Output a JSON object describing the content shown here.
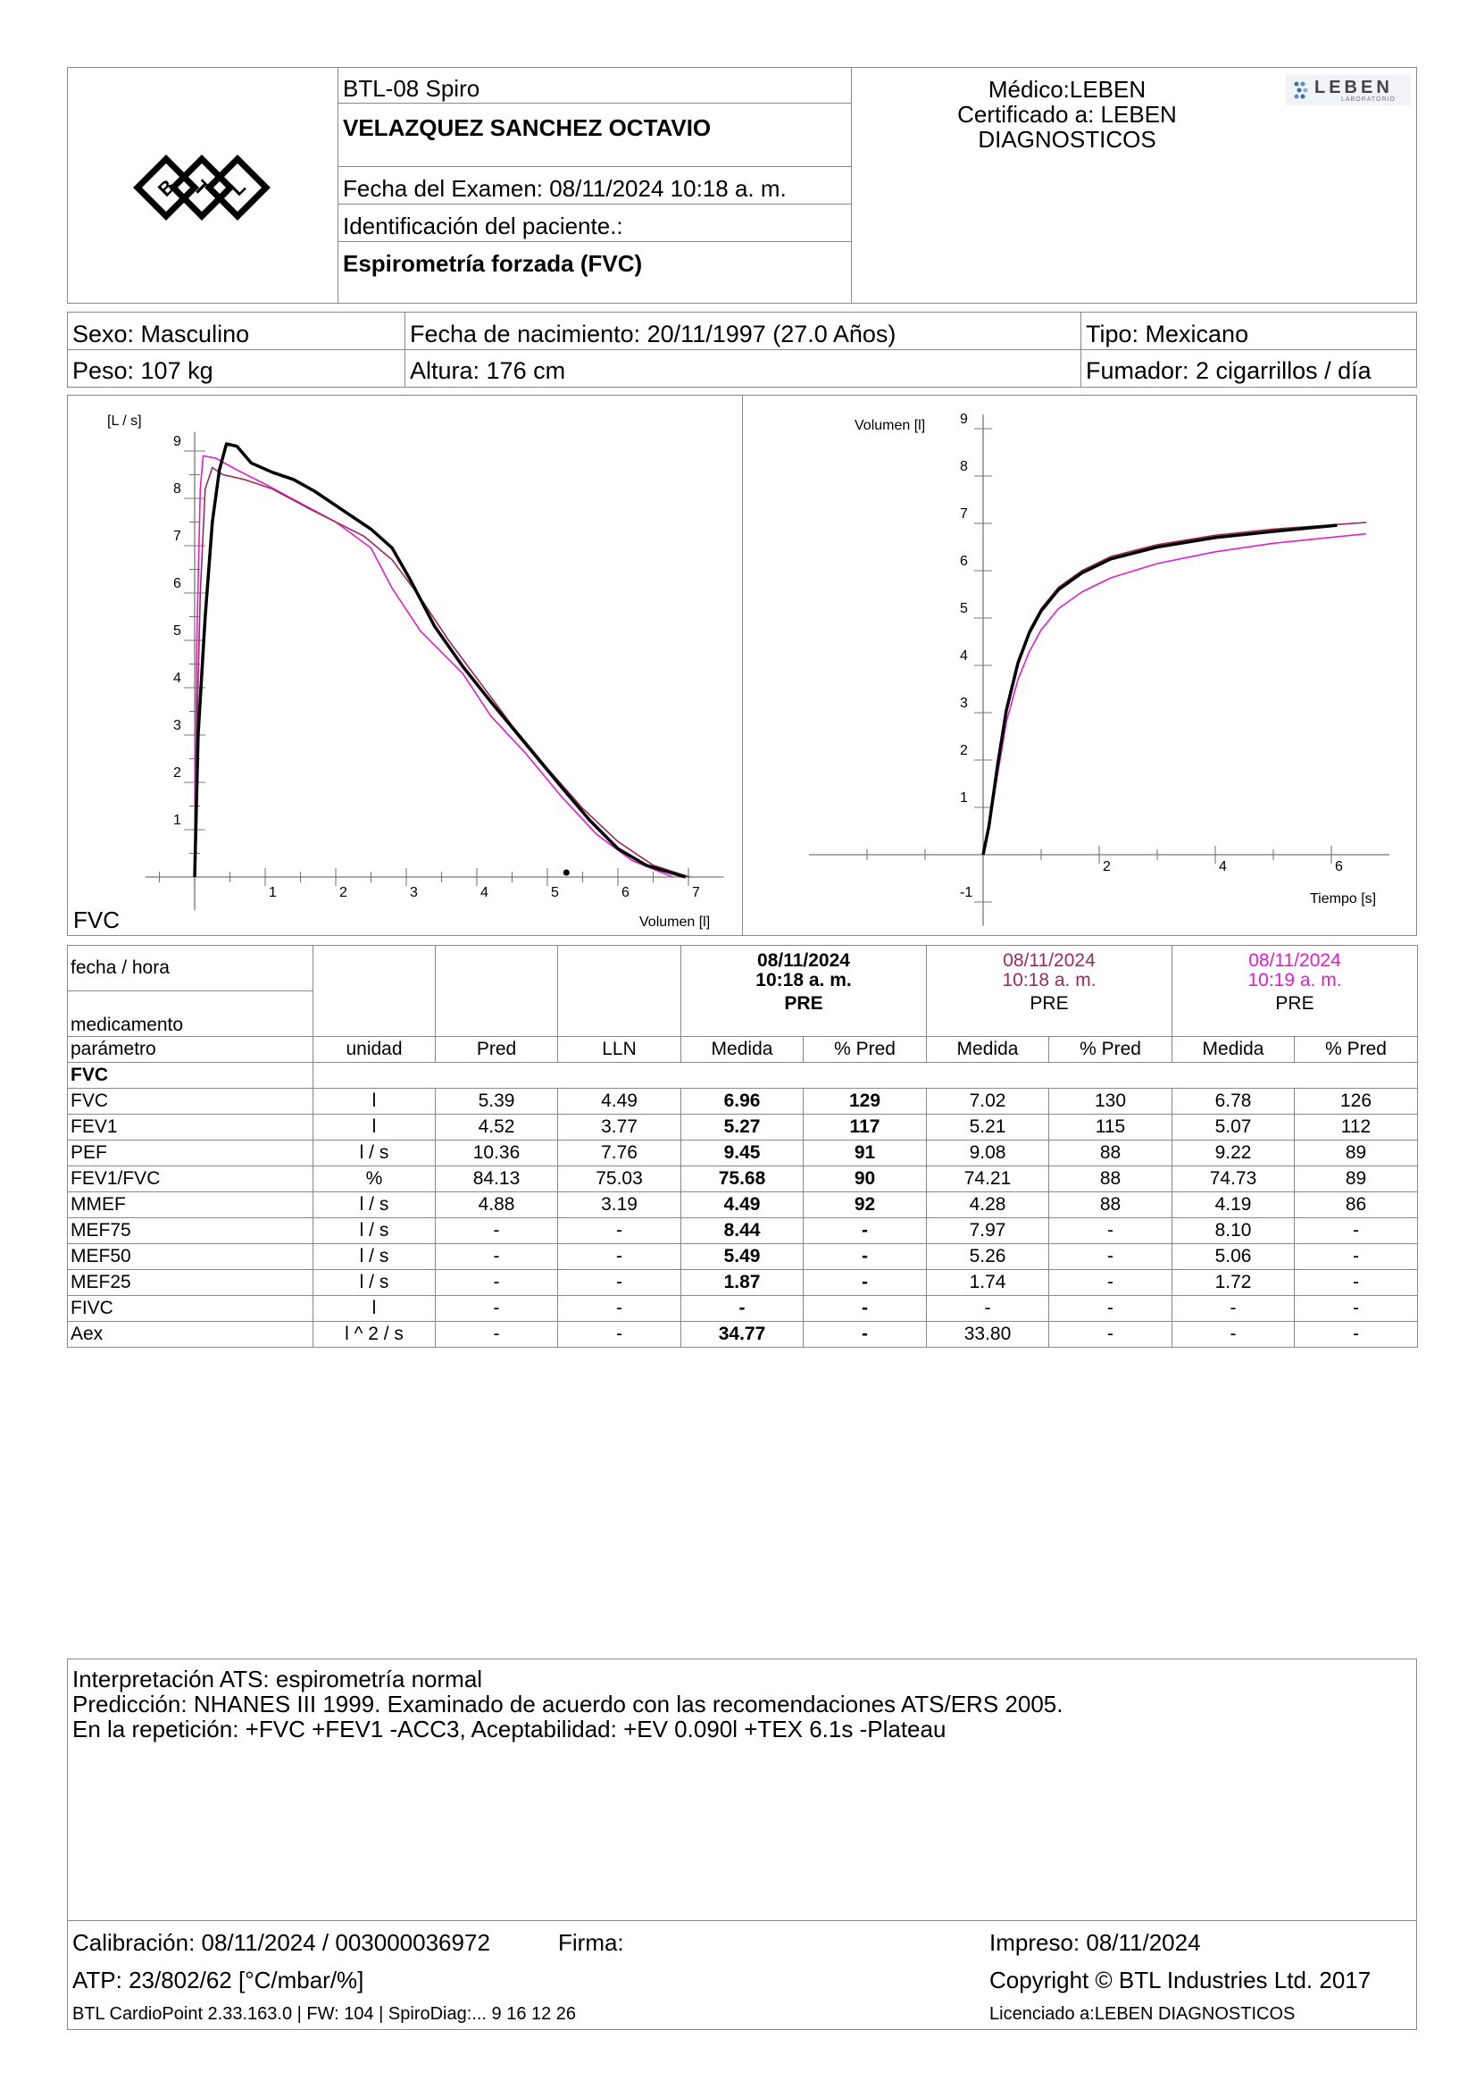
{
  "header": {
    "device": "BTL-08 Spiro",
    "patient_name": "VELAZQUEZ SANCHEZ OCTAVIO",
    "exam_date": "Fecha del Examen:  08/11/2024 10:18 a. m.",
    "patient_id": "Identificación del paciente.:",
    "test_type": "Espirometría forzada (FVC)",
    "doctor": "Médico:LEBEN",
    "certified_line1": "Certificado a: LEBEN",
    "certified_line2": "DIAGNOSTICOS",
    "brand_logo_text": "LEBEN",
    "brand_logo_sub": "LABORATORIO"
  },
  "patient": {
    "sex": "Sexo: Masculino",
    "birth": "Fecha de nacimiento: 20/11/1997 (27.0 Años)",
    "type": "Tipo: Mexicano",
    "weight": "Peso: 107 kg",
    "height": "Altura: 176 cm",
    "smoker": "Fumador: 2 cigarrillos / día"
  },
  "colors": {
    "best_trial": "#000000",
    "trial_2": "#9b2a5e",
    "trial_3": "#e21ccf",
    "border": "#888888"
  },
  "chart_data": [
    {
      "type": "line",
      "ylabel": "[L / s]",
      "xlabel": "Volumen [l]",
      "corner_label": "FVC",
      "xlim": [
        -1,
        7.5
      ],
      "ylim": [
        -0.3,
        9.5
      ],
      "xticks": [
        1,
        2,
        3,
        4,
        5,
        6,
        7
      ],
      "yticks": [
        1,
        2,
        3,
        4,
        5,
        6,
        7,
        8,
        9
      ],
      "marker_point": {
        "x": 5.27,
        "y": 0
      },
      "series": [
        {
          "key": "best",
          "values": [
            [
              0,
              0
            ],
            [
              0.05,
              3
            ],
            [
              0.15,
              5.5
            ],
            [
              0.25,
              7.5
            ],
            [
              0.35,
              8.6
            ],
            [
              0.45,
              9.15
            ],
            [
              0.6,
              9.1
            ],
            [
              0.8,
              8.75
            ],
            [
              1.1,
              8.55
            ],
            [
              1.4,
              8.4
            ],
            [
              1.7,
              8.15
            ],
            [
              2.1,
              7.75
            ],
            [
              2.5,
              7.35
            ],
            [
              2.8,
              6.95
            ],
            [
              3.05,
              6.3
            ],
            [
              3.4,
              5.3
            ],
            [
              3.8,
              4.45
            ],
            [
              4.2,
              3.7
            ],
            [
              4.7,
              2.8
            ],
            [
              5.2,
              1.9
            ],
            [
              5.6,
              1.2
            ],
            [
              6.0,
              0.6
            ],
            [
              6.4,
              0.25
            ],
            [
              6.96,
              0
            ]
          ]
        },
        {
          "key": "trial2",
          "values": [
            [
              0,
              0
            ],
            [
              0.03,
              3
            ],
            [
              0.08,
              6
            ],
            [
              0.15,
              8.2
            ],
            [
              0.25,
              8.65
            ],
            [
              0.4,
              8.5
            ],
            [
              0.7,
              8.4
            ],
            [
              1.1,
              8.2
            ],
            [
              1.6,
              7.8
            ],
            [
              2.0,
              7.5
            ],
            [
              2.4,
              7.2
            ],
            [
              2.8,
              6.7
            ],
            [
              3.2,
              5.9
            ],
            [
              3.6,
              5.0
            ],
            [
              4.0,
              4.2
            ],
            [
              4.5,
              3.2
            ],
            [
              5.0,
              2.3
            ],
            [
              5.5,
              1.45
            ],
            [
              6.0,
              0.75
            ],
            [
              6.5,
              0.25
            ],
            [
              7.02,
              0
            ]
          ]
        },
        {
          "key": "trial3",
          "values": [
            [
              0,
              0
            ],
            [
              0.03,
              5
            ],
            [
              0.08,
              8.2
            ],
            [
              0.12,
              8.9
            ],
            [
              0.3,
              8.85
            ],
            [
              0.6,
              8.6
            ],
            [
              1.0,
              8.3
            ],
            [
              1.5,
              7.9
            ],
            [
              2.0,
              7.5
            ],
            [
              2.5,
              6.95
            ],
            [
              2.8,
              6.1
            ],
            [
              3.2,
              5.2
            ],
            [
              3.8,
              4.3
            ],
            [
              4.2,
              3.4
            ],
            [
              4.7,
              2.6
            ],
            [
              5.2,
              1.7
            ],
            [
              5.7,
              0.9
            ],
            [
              6.2,
              0.35
            ],
            [
              6.78,
              0
            ]
          ]
        }
      ]
    },
    {
      "type": "line",
      "ylabel": "Volumen [l]",
      "xlabel": "Tiempo [s]",
      "xlim": [
        -3,
        7
      ],
      "ylim": [
        -1.5,
        9.5
      ],
      "xticks": [
        2,
        4,
        6
      ],
      "yticks": [
        -1,
        1,
        2,
        3,
        4,
        5,
        6,
        7,
        8,
        9
      ],
      "series": [
        {
          "key": "best",
          "values": [
            [
              0,
              0
            ],
            [
              0.1,
              0.6
            ],
            [
              0.25,
              1.9
            ],
            [
              0.4,
              3.05
            ],
            [
              0.6,
              4.05
            ],
            [
              0.8,
              4.7
            ],
            [
              1.0,
              5.15
            ],
            [
              1.3,
              5.6
            ],
            [
              1.7,
              5.95
            ],
            [
              2.2,
              6.25
            ],
            [
              3.0,
              6.5
            ],
            [
              4.0,
              6.7
            ],
            [
              5.0,
              6.83
            ],
            [
              6.1,
              6.96
            ]
          ]
        },
        {
          "key": "trial2",
          "values": [
            [
              0,
              0
            ],
            [
              0.1,
              0.65
            ],
            [
              0.25,
              1.95
            ],
            [
              0.4,
              3.1
            ],
            [
              0.6,
              4.1
            ],
            [
              0.8,
              4.75
            ],
            [
              1.0,
              5.2
            ],
            [
              1.3,
              5.65
            ],
            [
              1.7,
              6.0
            ],
            [
              2.2,
              6.3
            ],
            [
              3.0,
              6.55
            ],
            [
              4.0,
              6.75
            ],
            [
              5.0,
              6.88
            ],
            [
              6.6,
              7.02
            ]
          ]
        },
        {
          "key": "trial3",
          "values": [
            [
              0,
              0
            ],
            [
              0.1,
              0.55
            ],
            [
              0.25,
              1.7
            ],
            [
              0.4,
              2.8
            ],
            [
              0.6,
              3.7
            ],
            [
              0.8,
              4.3
            ],
            [
              1.0,
              4.75
            ],
            [
              1.3,
              5.2
            ],
            [
              1.7,
              5.55
            ],
            [
              2.2,
              5.85
            ],
            [
              3.0,
              6.15
            ],
            [
              4.0,
              6.4
            ],
            [
              5.0,
              6.58
            ],
            [
              6.6,
              6.78
            ]
          ]
        }
      ]
    }
  ],
  "table": {
    "row_fecha": "fecha / hora",
    "row_medicamento": "medicamento",
    "trials": [
      {
        "date": "08/11/2024",
        "time": "10:18 a. m.",
        "med": "PRE"
      },
      {
        "date": "08/11/2024",
        "time": "10:18 a. m.",
        "med": "PRE"
      },
      {
        "date": "08/11/2024",
        "time": "10:19 a. m.",
        "med": "PRE"
      }
    ],
    "headers": [
      "parámetro",
      "unidad",
      "Pred",
      "LLN",
      "Medida",
      "% Pred",
      "Medida",
      "% Pred",
      "Medida",
      "% Pred"
    ],
    "section": "FVC",
    "rows": [
      [
        "FVC",
        "l",
        "5.39",
        "4.49",
        "6.96",
        "129",
        "7.02",
        "130",
        "6.78",
        "126"
      ],
      [
        "FEV1",
        "l",
        "4.52",
        "3.77",
        "5.27",
        "117",
        "5.21",
        "115",
        "5.07",
        "112"
      ],
      [
        "PEF",
        "l / s",
        "10.36",
        "7.76",
        "9.45",
        "91",
        "9.08",
        "88",
        "9.22",
        "89"
      ],
      [
        "FEV1/FVC",
        "%",
        "84.13",
        "75.03",
        "75.68",
        "90",
        "74.21",
        "88",
        "74.73",
        "89"
      ],
      [
        "MMEF",
        "l / s",
        "4.88",
        "3.19",
        "4.49",
        "92",
        "4.28",
        "88",
        "4.19",
        "86"
      ],
      [
        "MEF75",
        "l / s",
        "-",
        "-",
        "8.44",
        "-",
        "7.97",
        "-",
        "8.10",
        "-"
      ],
      [
        "MEF50",
        "l / s",
        "-",
        "-",
        "5.49",
        "-",
        "5.26",
        "-",
        "5.06",
        "-"
      ],
      [
        "MEF25",
        "l / s",
        "-",
        "-",
        "1.87",
        "-",
        "1.74",
        "-",
        "1.72",
        "-"
      ],
      [
        "FIVC",
        "l",
        "-",
        "-",
        "-",
        "-",
        "-",
        "-",
        "-",
        "-"
      ],
      [
        "Aex",
        "l ^ 2 / s",
        "-",
        "-",
        "34.77",
        "-",
        "33.80",
        "-",
        "-",
        "-"
      ]
    ]
  },
  "interpretation": {
    "line1": "Interpretación ATS: espirometría normal",
    "line2": "Predicción: NHANES III 1999. Examinado de acuerdo con las recomendaciones ATS/ERS 2005.",
    "line3": "En la repetición: +FVC +FEV1 -ACC3, Aceptabilidad: +EV 0.090l +TEX 6.1s -Plateau"
  },
  "footer": {
    "calibration": "Calibración: 08/11/2024 / 003000036972",
    "signature": "Firma:",
    "atp": "ATP: 23/802/62 [°C/mbar/%]",
    "software": "BTL CardioPoint 2.33.163.0 | FW: 104 | SpiroDiag:... 9 16 12 26",
    "printed": "Impreso: 08/11/2024",
    "copyright": "Copyright © BTL Industries Ltd. 2017",
    "licensed": "Licenciado a:LEBEN DIAGNOSTICOS"
  }
}
